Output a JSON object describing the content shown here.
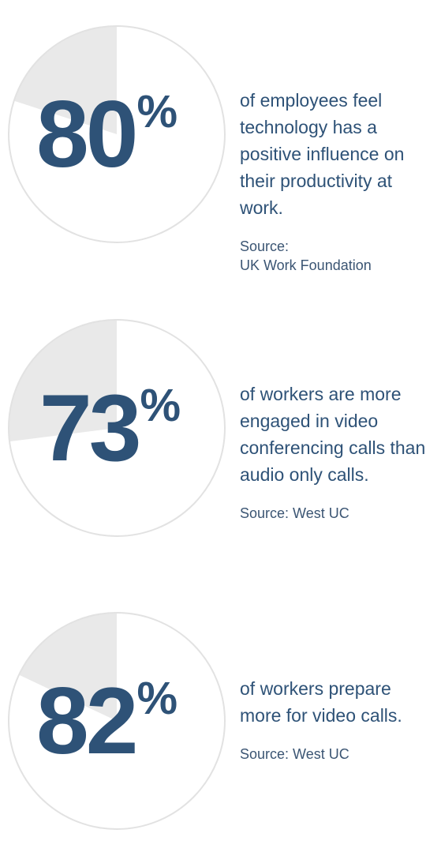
{
  "chart_data": [
    {
      "type": "pie",
      "value": 80,
      "unit": "%",
      "slices": [
        {
          "label": "",
          "value": 80,
          "color": "#ffffff"
        },
        {
          "label": "",
          "value": 20,
          "color": "#e9e9e9"
        }
      ],
      "description": "of employees feel technology has a positive influence on their productivity at work.",
      "source_lines": [
        "Source:",
        "UK Work Foundation"
      ]
    },
    {
      "type": "pie",
      "value": 73,
      "unit": "%",
      "slices": [
        {
          "label": "",
          "value": 73,
          "color": "#ffffff"
        },
        {
          "label": "",
          "value": 27,
          "color": "#e9e9e9"
        }
      ],
      "description": "of workers are more engaged in video conferencing calls than audio only calls.",
      "source_lines": [
        "Source: West UC"
      ]
    },
    {
      "type": "pie",
      "value": 82,
      "unit": "%",
      "slices": [
        {
          "label": "",
          "value": 82,
          "color": "#ffffff"
        },
        {
          "label": "",
          "value": 18,
          "color": "#e9e9e9"
        }
      ],
      "description": "of workers prepare more for video calls.",
      "source_lines": [
        "Source: West UC"
      ]
    }
  ],
  "colors": {
    "accent": "#2e5277",
    "pie_remainder": "#e9e9e9",
    "pie_outline": "#e2e2e2"
  }
}
